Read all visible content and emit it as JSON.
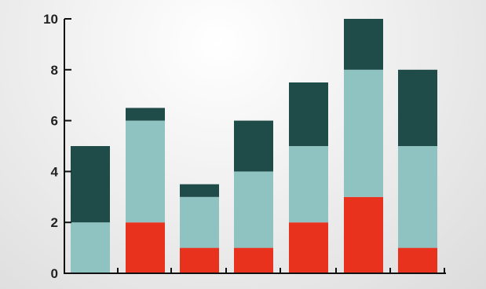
{
  "chart_data": {
    "type": "bar",
    "stacked": true,
    "categories": [
      "",
      "",
      "",
      "",
      "",
      "",
      ""
    ],
    "series": [
      {
        "color": "#e8321e",
        "values": [
          0,
          2,
          1,
          1,
          2,
          3,
          1
        ]
      },
      {
        "color": "#8fc3c2",
        "values": [
          2,
          4,
          2,
          3,
          3,
          5,
          4
        ]
      },
      {
        "color": "#1f4b48",
        "values": [
          3,
          0.5,
          0.5,
          2,
          2.5,
          2,
          3
        ]
      }
    ],
    "ylim": [
      0,
      10
    ],
    "yticks": [
      "0",
      "2",
      "4",
      "6",
      "8",
      "10"
    ],
    "grid": false,
    "legend": "none",
    "axis_color": "#111111"
  }
}
